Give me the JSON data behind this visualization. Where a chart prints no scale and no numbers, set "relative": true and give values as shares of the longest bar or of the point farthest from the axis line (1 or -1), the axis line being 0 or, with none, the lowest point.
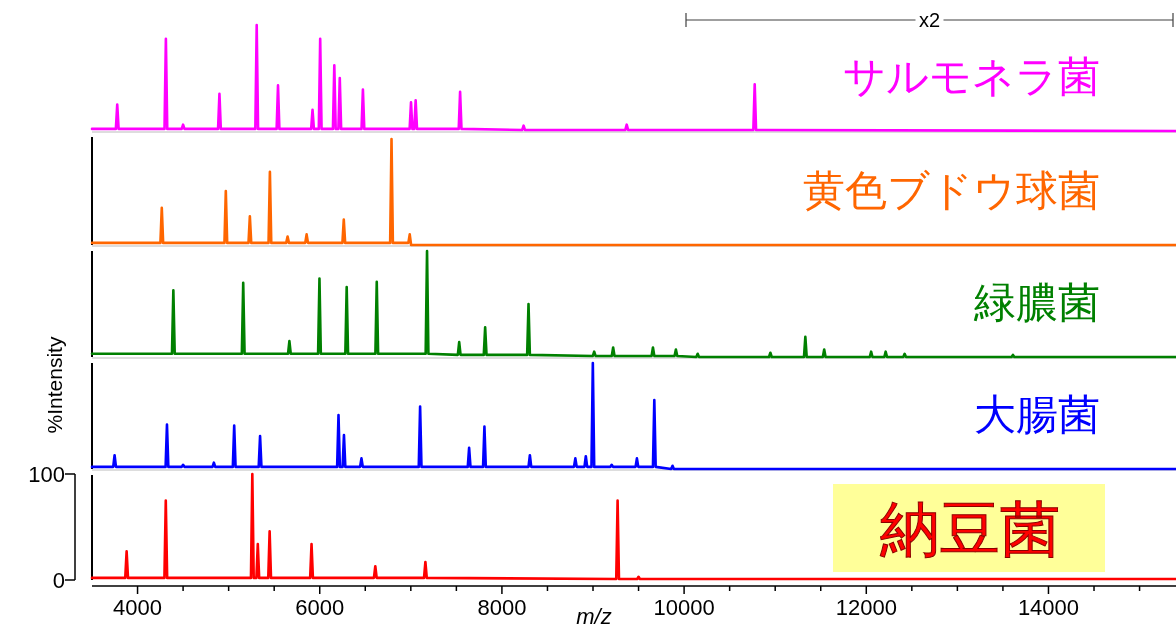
{
  "chart_data": [
    {
      "type": "line",
      "relative": true,
      "tick_labels": false,
      "xlim": [
        3500,
        15400
      ],
      "annotations": [
        "x2"
      ],
      "series": [
        {
          "name": "サルモネラ菌",
          "color": "#ff00ff",
          "x": [
            3500,
            3762,
            3777,
            3792,
            4296,
            4311,
            4326,
            4485,
            4500,
            4515,
            4884,
            4899,
            4914,
            5293,
            5308,
            5323,
            5527,
            5542,
            5557,
            5906,
            5921,
            5936,
            5990,
            6005,
            6020,
            6145,
            6160,
            6175,
            6205,
            6220,
            6235,
            6459,
            6474,
            6489,
            6987,
            7002,
            7017,
            7038,
            7053,
            7068,
            7526,
            7541,
            7556,
            8223,
            8238,
            8253,
            9355,
            9370,
            9385,
            10760,
            10775,
            10790,
            15400
          ],
          "values": [
            0.02,
            0.02,
            0.25,
            0.02,
            0.02,
            0.87,
            0.02,
            0.02,
            0.06,
            0.02,
            0.02,
            0.35,
            0.02,
            0.02,
            1.0,
            0.02,
            0.02,
            0.43,
            0.02,
            0.02,
            0.2,
            0.02,
            0.02,
            0.87,
            0.02,
            0.02,
            0.62,
            0.02,
            0.02,
            0.5,
            0.02,
            0.02,
            0.39,
            0.02,
            0.02,
            0.27,
            0.02,
            0.02,
            0.29,
            0.02,
            0.02,
            0.37,
            0.02,
            0.01,
            0.05,
            0.01,
            0.01,
            0.06,
            0.01,
            0.01,
            0.44,
            0.01,
            0.0
          ]
        }
      ]
    },
    {
      "type": "line",
      "relative": true,
      "tick_labels": false,
      "xlim": [
        3500,
        15400
      ],
      "series": [
        {
          "name": "黄色ブドウ球菌",
          "color": "#ff6600",
          "x": [
            3500,
            4251,
            4266,
            4281,
            4954,
            4969,
            4984,
            5218,
            5233,
            5248,
            5438,
            5453,
            5468,
            5632,
            5647,
            5662,
            5841,
            5856,
            5871,
            6249,
            6264,
            6279,
            6773,
            6788,
            6803,
            6973,
            6988,
            7003,
            15400
          ],
          "values": [
            0.02,
            0.02,
            0.35,
            0.02,
            0.02,
            0.51,
            0.02,
            0.02,
            0.27,
            0.02,
            0.02,
            0.69,
            0.02,
            0.02,
            0.08,
            0.02,
            0.02,
            0.1,
            0.02,
            0.02,
            0.24,
            0.02,
            0.02,
            1.0,
            0.02,
            0.02,
            0.1,
            0.0,
            0.0
          ]
        }
      ]
    },
    {
      "type": "line",
      "relative": true,
      "tick_labels": false,
      "xlim": [
        3500,
        15400
      ],
      "series": [
        {
          "name": "緑膿菌",
          "color": "#008000",
          "x": [
            3500,
            4378,
            4393,
            4408,
            5145,
            5160,
            5175,
            5652,
            5667,
            5682,
            5982,
            5997,
            6012,
            6281,
            6296,
            6311,
            6611,
            6626,
            6641,
            7163,
            7178,
            7193,
            7516,
            7531,
            7546,
            7801,
            7816,
            7831,
            8277,
            8292,
            8307,
            8998,
            9013,
            9028,
            9206,
            9221,
            9236,
            9643,
            9658,
            9673,
            9895,
            9910,
            9925,
            10134,
            10149,
            10164,
            10932,
            10947,
            10962,
            11316,
            11331,
            11346,
            11523,
            11538,
            11553,
            12038,
            12053,
            12068,
            12198,
            12213,
            12228,
            12406,
            12421,
            12436,
            13595,
            13610,
            13625,
            15400
          ],
          "values": [
            0.03,
            0.03,
            0.63,
            0.03,
            0.03,
            0.7,
            0.03,
            0.03,
            0.15,
            0.03,
            0.03,
            0.74,
            0.03,
            0.03,
            0.66,
            0.03,
            0.03,
            0.71,
            0.03,
            0.03,
            1.0,
            0.03,
            0.02,
            0.14,
            0.02,
            0.02,
            0.28,
            0.02,
            0.02,
            0.5,
            0.02,
            0.01,
            0.05,
            0.01,
            0.01,
            0.09,
            0.01,
            0.01,
            0.09,
            0.01,
            0.01,
            0.07,
            0.01,
            0.0,
            0.03,
            0.0,
            0.0,
            0.04,
            0.0,
            0.0,
            0.19,
            0.0,
            0.0,
            0.07,
            0.0,
            0.0,
            0.05,
            0.0,
            0.0,
            0.05,
            0.0,
            0.0,
            0.03,
            0.0,
            0.0,
            0.02,
            0.0,
            0.0
          ]
        }
      ]
    },
    {
      "type": "line",
      "relative": true,
      "tick_labels": false,
      "xlim": [
        3500,
        15400
      ],
      "series": [
        {
          "name": "大腸菌",
          "color": "#0000ff",
          "x": [
            3500,
            3733,
            3748,
            3763,
            4308,
            4323,
            4338,
            4485,
            4500,
            4515,
            4823,
            4838,
            4853,
            5046,
            5061,
            5076,
            5330,
            5345,
            5360,
            6191,
            6206,
            6221,
            6251,
            6266,
            6281,
            6443,
            6458,
            6473,
            7087,
            7102,
            7117,
            7625,
            7640,
            7655,
            7793,
            7808,
            7823,
            8292,
            8307,
            8322,
            8791,
            8806,
            8821,
            8906,
            8921,
            8936,
            8983,
            8998,
            9013,
            9190,
            9205,
            9220,
            9467,
            9482,
            9497,
            9658,
            9673,
            9688,
            9858,
            9873,
            9888,
            15400
          ],
          "values": [
            0.02,
            0.02,
            0.13,
            0.02,
            0.02,
            0.42,
            0.02,
            0.02,
            0.04,
            0.02,
            0.02,
            0.06,
            0.02,
            0.02,
            0.41,
            0.02,
            0.02,
            0.31,
            0.02,
            0.02,
            0.51,
            0.02,
            0.02,
            0.32,
            0.02,
            0.02,
            0.1,
            0.02,
            0.02,
            0.59,
            0.02,
            0.02,
            0.2,
            0.02,
            0.02,
            0.4,
            0.02,
            0.02,
            0.13,
            0.02,
            0.02,
            0.1,
            0.02,
            0.02,
            0.12,
            0.02,
            0.02,
            1.0,
            0.02,
            0.02,
            0.04,
            0.02,
            0.02,
            0.1,
            0.02,
            0.02,
            0.65,
            0.02,
            0.0,
            0.03,
            0.0,
            0.0
          ]
        }
      ]
    },
    {
      "type": "line",
      "xlabel": "m/z",
      "ylabel": "%Intensity",
      "xlim": [
        3500,
        15400
      ],
      "ylim": [
        0,
        100
      ],
      "xticks": [
        4000,
        {
          "value": 4500,
          "label": null
        },
        {
          "value": 5000,
          "label": null
        },
        {
          "value": 5500,
          "label": null
        },
        6000,
        {
          "value": 6500,
          "label": null
        },
        {
          "value": 7000,
          "label": null
        },
        {
          "value": 7500,
          "label": null
        },
        8000,
        {
          "value": 8500,
          "label": null
        },
        {
          "value": 9000,
          "label": null
        },
        {
          "value": 9500,
          "label": null
        },
        10000,
        {
          "value": 10500,
          "label": null
        },
        {
          "value": 11000,
          "label": null
        },
        {
          "value": 11500,
          "label": null
        },
        12000,
        {
          "value": 12500,
          "label": null
        },
        {
          "value": 13000,
          "label": null
        },
        {
          "value": 13500,
          "label": null
        },
        14000,
        {
          "value": 14500,
          "label": null
        },
        {
          "value": 15000,
          "label": null
        }
      ],
      "yticks": [
        0,
        100
      ],
      "series": [
        {
          "name": "納豆菌",
          "color": "#ff0000",
          "x": [
            3500,
            3865,
            3880,
            3895,
            4295,
            4310,
            4325,
            5245,
            5260,
            5275,
            5305,
            5320,
            5335,
            5435,
            5450,
            5465,
            5895,
            5910,
            5925,
            6595,
            6610,
            6625,
            7145,
            7160,
            7175,
            9255,
            9270,
            9285,
            9485,
            9500,
            9515,
            15400
          ],
          "values": [
            2,
            2,
            27,
            2,
            2,
            75,
            2,
            2,
            100,
            2,
            2,
            34,
            2,
            2,
            46,
            2,
            2,
            34,
            2,
            2,
            13,
            2,
            2,
            17,
            2,
            1,
            75,
            1,
            1,
            3,
            1,
            1
          ]
        }
      ]
    }
  ]
}
